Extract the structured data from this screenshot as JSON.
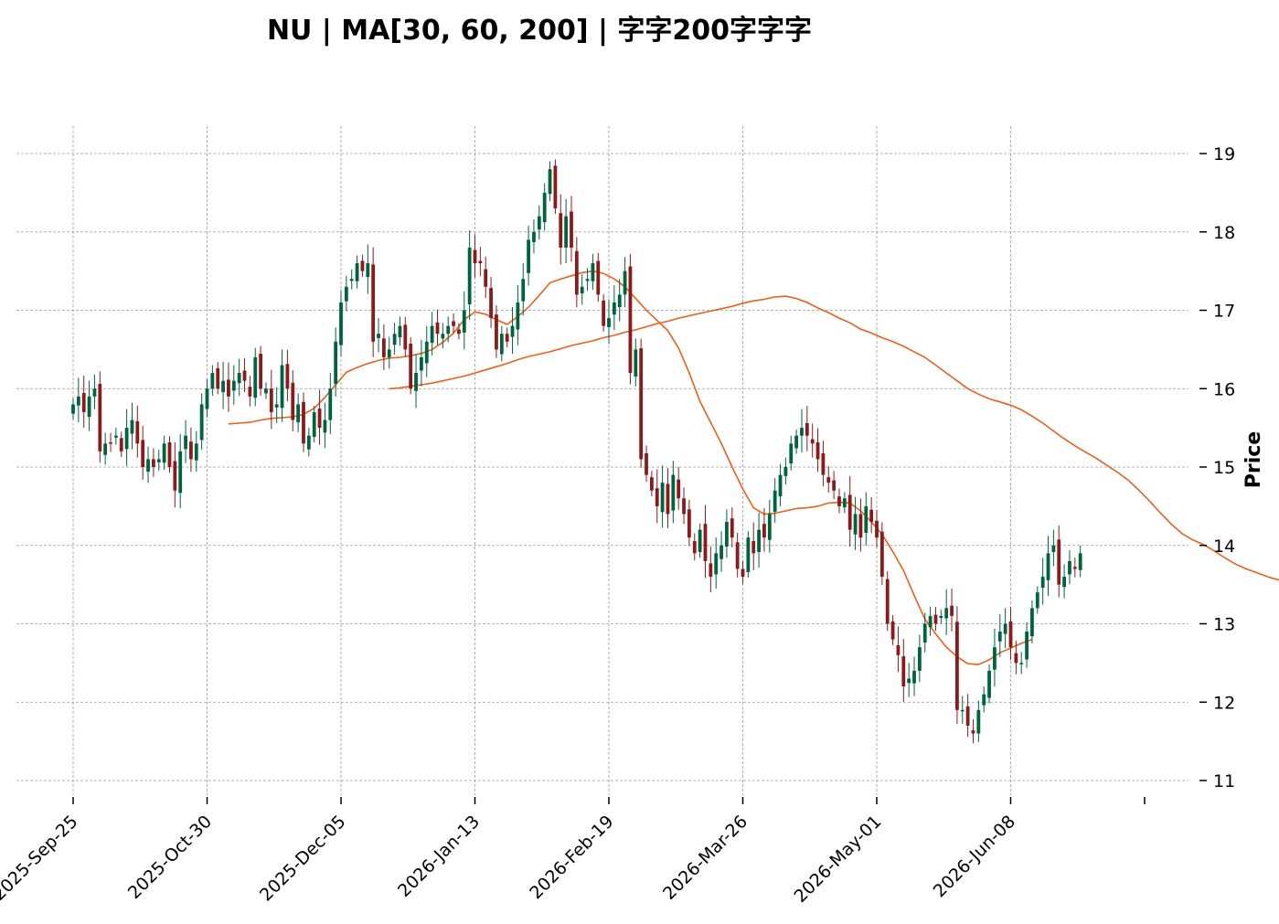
{
  "chart_data": {
    "type": "candlestick",
    "title": "NU  |  MA[30, 60, 200]  |  字字200字字字",
    "xlabel": "",
    "ylabel": "Price",
    "ylim": [
      10.85,
      19.35
    ],
    "y_ticks": [
      11,
      12,
      13,
      14,
      15,
      16,
      17,
      18,
      19
    ],
    "x_tick_labels": [
      "2025-Sep-25",
      "2025-Oct-30",
      "2025-Dec-05",
      "2026-Jan-13",
      "2026-Feb-19",
      "2026-Mar-26",
      "2026-May-01",
      "2026-Jun-08"
    ],
    "x_tick_index": [
      0,
      25,
      50,
      75,
      100,
      125,
      150,
      175
    ],
    "grid": true,
    "colors": {
      "up": "#006340",
      "down": "#8b1a1a",
      "ma": "#e8601c",
      "grid": "#9a9a9a"
    },
    "closes": [
      15.8,
      15.9,
      15.7,
      15.9,
      16.0,
      15.2,
      15.3,
      15.3,
      15.4,
      15.2,
      15.5,
      15.6,
      15.3,
      15.0,
      15.1,
      15.0,
      15.1,
      15.3,
      15.0,
      14.7,
      15.2,
      15.4,
      15.1,
      15.3,
      15.8,
      16.0,
      16.2,
      16.0,
      16.1,
      15.9,
      16.1,
      16.2,
      16.1,
      15.9,
      16.4,
      16.0,
      16.0,
      15.7,
      15.8,
      16.3,
      16.0,
      15.6,
      15.8,
      15.3,
      15.4,
      15.7,
      15.5,
      15.6,
      16.0,
      16.6,
      17.1,
      17.3,
      17.4,
      17.6,
      17.5,
      17.6,
      16.6,
      16.7,
      16.4,
      16.5,
      16.7,
      16.8,
      16.5,
      16.0,
      16.2,
      16.4,
      16.6,
      16.8,
      16.7,
      16.7,
      16.8,
      16.8,
      16.7,
      17.0,
      17.8,
      17.6,
      17.6,
      17.3,
      16.9,
      16.5,
      16.7,
      16.6,
      16.8,
      17.1,
      17.4,
      17.9,
      18.0,
      18.2,
      18.5,
      18.8,
      18.3,
      17.8,
      18.2,
      17.8,
      17.2,
      17.3,
      17.4,
      17.6,
      17.2,
      16.8,
      16.9,
      17.1,
      17.2,
      17.5,
      16.2,
      16.5,
      15.1,
      14.9,
      14.7,
      14.5,
      14.8,
      14.4,
      14.9,
      14.6,
      14.4,
      14.1,
      13.9,
      14.2,
      13.8,
      13.6,
      13.9,
      14.0,
      14.3,
      14.1,
      13.7,
      13.6,
      14.1,
      13.9,
      14.2,
      14.1,
      14.4,
      14.7,
      14.9,
      15.0,
      15.3,
      15.4,
      15.5,
      15.4,
      15.3,
      15.1,
      14.9,
      14.8,
      14.7,
      14.5,
      14.6,
      14.2,
      14.4,
      14.1,
      14.5,
      14.3,
      14.1,
      13.6,
      13.0,
      12.8,
      12.6,
      12.2,
      12.3,
      12.4,
      12.7,
      13.0,
      13.1,
      13.0,
      13.1,
      13.2,
      13.1,
      11.9,
      11.9,
      11.7,
      11.6,
      11.9,
      12.1,
      12.4,
      12.7,
      12.9,
      13.0,
      12.7,
      12.5,
      12.5,
      12.9,
      13.2,
      13.4,
      13.6,
      13.9,
      14.0,
      13.5,
      13.6,
      13.8,
      13.7,
      13.9
    ],
    "ma_long": [
      16.0,
      16.01,
      16.03,
      16.05,
      16.07,
      16.1,
      16.13,
      16.16,
      16.2,
      16.24,
      16.28,
      16.32,
      16.37,
      16.41,
      16.44,
      16.47,
      16.51,
      16.55,
      16.58,
      16.61,
      16.65,
      16.68,
      16.72,
      16.75,
      16.79,
      16.83,
      16.86,
      16.9,
      16.93,
      16.96,
      16.99,
      17.02,
      17.05,
      17.09,
      17.12,
      17.14,
      17.17,
      17.18,
      17.15,
      17.1,
      17.03,
      16.97,
      16.9,
      16.84,
      16.76,
      16.71,
      16.65,
      16.6,
      16.54,
      16.47,
      16.4,
      16.3,
      16.2,
      16.1,
      16.0,
      15.93,
      15.87,
      15.83,
      15.79,
      15.73,
      15.65,
      15.56,
      15.46,
      15.36,
      15.27,
      15.19,
      15.11,
      15.02,
      14.93,
      14.83,
      14.7,
      14.56,
      14.41,
      14.27,
      14.15,
      14.07,
      14.01,
      13.93,
      13.84,
      13.76,
      13.7,
      13.65,
      13.6,
      13.56,
      13.52,
      13.49,
      13.46,
      13.43,
      13.39,
      13.35,
      13.29
    ],
    "ma_short": [
      15.55,
      15.56,
      15.57,
      15.6,
      15.62,
      15.63,
      15.64,
      15.67,
      15.75,
      15.89,
      16.05,
      16.21,
      16.27,
      16.32,
      16.36,
      16.39,
      16.4,
      16.42,
      16.45,
      16.5,
      16.59,
      16.71,
      16.88,
      16.98,
      16.95,
      16.88,
      16.82,
      16.92,
      17.04,
      17.19,
      17.35,
      17.4,
      17.44,
      17.48,
      17.5,
      17.47,
      17.4,
      17.3,
      17.15,
      17.0,
      16.87,
      16.74,
      16.52,
      16.2,
      15.84,
      15.57,
      15.3,
      15.0,
      14.72,
      14.48,
      14.4,
      14.41,
      14.44,
      14.47,
      14.48,
      14.5,
      14.54,
      14.55,
      14.54,
      14.44,
      14.3,
      14.14,
      13.92,
      13.68,
      13.36,
      13.06,
      12.87,
      12.7,
      12.58,
      12.49,
      12.48,
      12.54,
      12.63,
      12.69,
      12.75,
      12.8
    ]
  }
}
